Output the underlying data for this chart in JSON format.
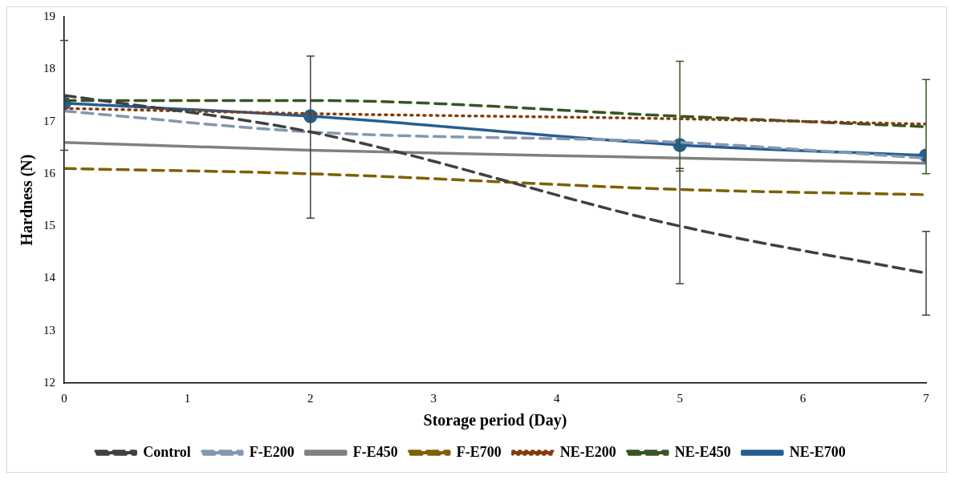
{
  "chart_data": {
    "type": "line",
    "xlabel": "Storage period (Day)",
    "ylabel": "Hardness (N)",
    "x": [
      0,
      2,
      5,
      7
    ],
    "xlim": [
      0,
      7
    ],
    "xticks": [
      0,
      1,
      2,
      3,
      4,
      5,
      6,
      7
    ],
    "ylim": [
      12,
      19
    ],
    "yticks": [
      12,
      13,
      14,
      15,
      16,
      17,
      18,
      19
    ],
    "grid": false,
    "legend": "bottom",
    "series": [
      {
        "name": "Control",
        "color": "#404040",
        "values": [
          17.5,
          16.8,
          15.0,
          14.1
        ],
        "errors": [
          1.05,
          [
            15.15,
            18.25
          ],
          1.1,
          0.8
        ],
        "line_style": "dashed",
        "marker": "none"
      },
      {
        "name": "F-E200",
        "color": "#8497b0",
        "values": [
          17.2,
          16.8,
          16.6,
          16.3
        ],
        "line_style": "dashed",
        "marker": "none"
      },
      {
        "name": "F-E450",
        "color": "#808080",
        "values": [
          16.6,
          16.45,
          16.3,
          16.2
        ],
        "line_style": "solid",
        "marker": "none"
      },
      {
        "name": "F-E700",
        "color": "#7f6000",
        "values": [
          16.1,
          16.0,
          15.7,
          15.6
        ],
        "line_style": "dashed",
        "marker": "none"
      },
      {
        "name": "NE-E200",
        "color": "#843c0c",
        "values": [
          17.25,
          17.15,
          17.05,
          16.95
        ],
        "line_style": "dotted",
        "marker": "none"
      },
      {
        "name": "NE-E450",
        "color": "#375623",
        "values": [
          17.4,
          17.4,
          17.1,
          16.9
        ],
        "errors": [
          null,
          null,
          [
            16.05,
            18.15
          ],
          0.9
        ],
        "line_style": "dashed",
        "marker": "none"
      },
      {
        "name": "NE-E700",
        "color": "#255e91",
        "values": [
          17.35,
          17.1,
          16.55,
          16.35
        ],
        "line_style": "solid",
        "marker": "circle"
      }
    ]
  }
}
